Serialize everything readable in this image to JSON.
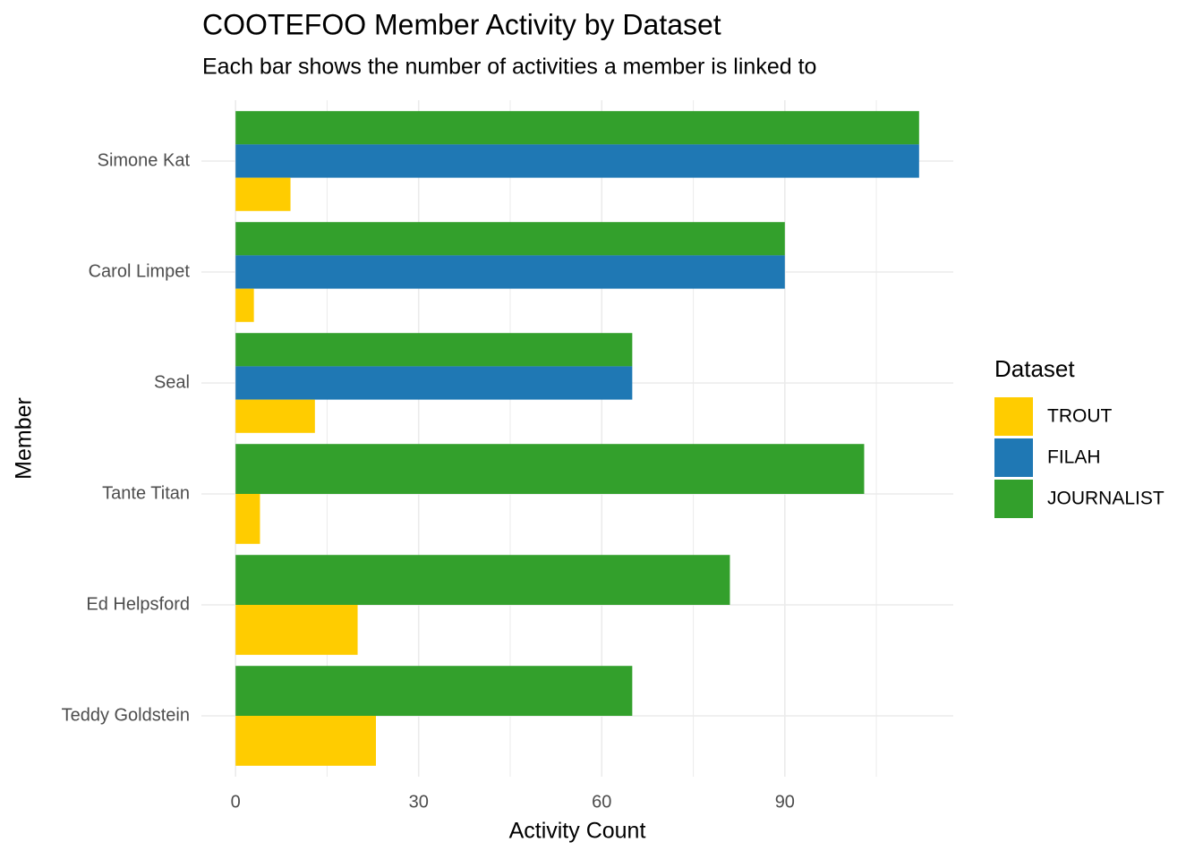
{
  "chart_data": {
    "type": "bar",
    "orientation": "horizontal",
    "title": "COOTEFOO Member Activity by Dataset",
    "subtitle": "Each bar shows the number of activities a member is linked to",
    "x_label": "Activity Count",
    "y_label": "Member",
    "categories": [
      "Simone Kat",
      "Carol Limpet",
      "Seal",
      "Tante Titan",
      "Ed Helpsford",
      "Teddy Goldstein"
    ],
    "series": [
      {
        "name": "TROUT",
        "color": "#ffcc00",
        "values": [
          9,
          3,
          13,
          4,
          20,
          23
        ]
      },
      {
        "name": "FILAH",
        "color": "#1f78b4",
        "values": [
          112,
          90,
          65,
          null,
          null,
          null
        ]
      },
      {
        "name": "JOURNALIST",
        "color": "#33a02c",
        "values": [
          112,
          90,
          65,
          103,
          81,
          65
        ]
      }
    ],
    "xlim": [
      -5.6,
      117.6
    ],
    "xticks": [
      0,
      30,
      60,
      90
    ],
    "minor_xticks": [
      15,
      45,
      75,
      105
    ],
    "grid": true,
    "legend_title": "Dataset",
    "legend_position": "right"
  }
}
